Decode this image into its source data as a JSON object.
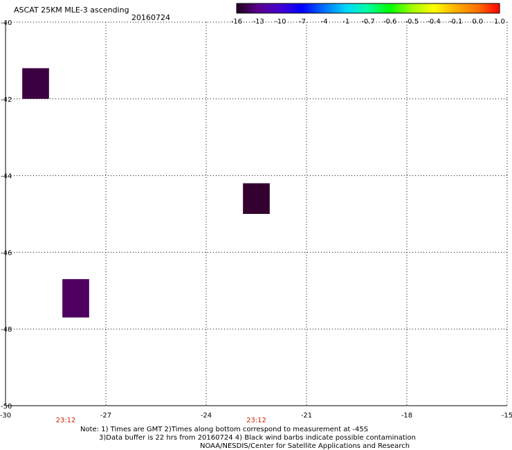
{
  "header": {
    "title": "ASCAT 25KM MLE-3 ascending",
    "date": "20160724"
  },
  "colorbar": {
    "labels": [
      "-16",
      "-13",
      "-10",
      "-7",
      "-4",
      "-1",
      "-0.7",
      "-0.6",
      "-0.5",
      "-0.4",
      "-0.1",
      "0.0",
      "1.0"
    ],
    "colors": [
      "#200018",
      "#5a0090",
      "#4500d0",
      "#0000ff",
      "#0070ff",
      "#00d8ff",
      "#00ffa0",
      "#00ff00",
      "#a0ff00",
      "#ffff00",
      "#ffb000",
      "#ff7000",
      "#ff0000"
    ]
  },
  "map": {
    "lon_range": [
      -30,
      -15
    ],
    "lat_range": [
      -50,
      -40
    ],
    "x_ticks": [
      "-30",
      "-27",
      "-24",
      "-21",
      "-18",
      "-15"
    ],
    "y_ticks": [
      "-40",
      "-42",
      "-44",
      "-46",
      "-48",
      "-50"
    ],
    "grid": true,
    "cells": [
      {
        "lon_min": -29.5,
        "lon_max": -28.7,
        "lat_min": -42.0,
        "lat_max": -41.2,
        "value": -16,
        "color": "#3b0040"
      },
      {
        "lon_min": -22.9,
        "lon_max": -22.1,
        "lat_min": -45.0,
        "lat_max": -44.2,
        "value": -16,
        "color": "#340030"
      },
      {
        "lon_min": -28.3,
        "lon_max": -27.5,
        "lat_min": -47.7,
        "lat_max": -46.7,
        "value": -13,
        "color": "#4d0060"
      }
    ],
    "time_labels": [
      {
        "lon": -28.2,
        "text": "23:12"
      },
      {
        "lon": -22.5,
        "text": "23:12"
      }
    ],
    "time_label_color": "#cc2200"
  },
  "notes": {
    "line1": "Note: 1) Times are GMT 2)Times along bottom correspond to measurement at -45S",
    "line2": "3)Data buffer is 22 hrs from 20160724 4) Black wind barbs indicate possible contamination",
    "line3": "NOAA/NESDIS/Center for Satellite Applications and Research"
  }
}
